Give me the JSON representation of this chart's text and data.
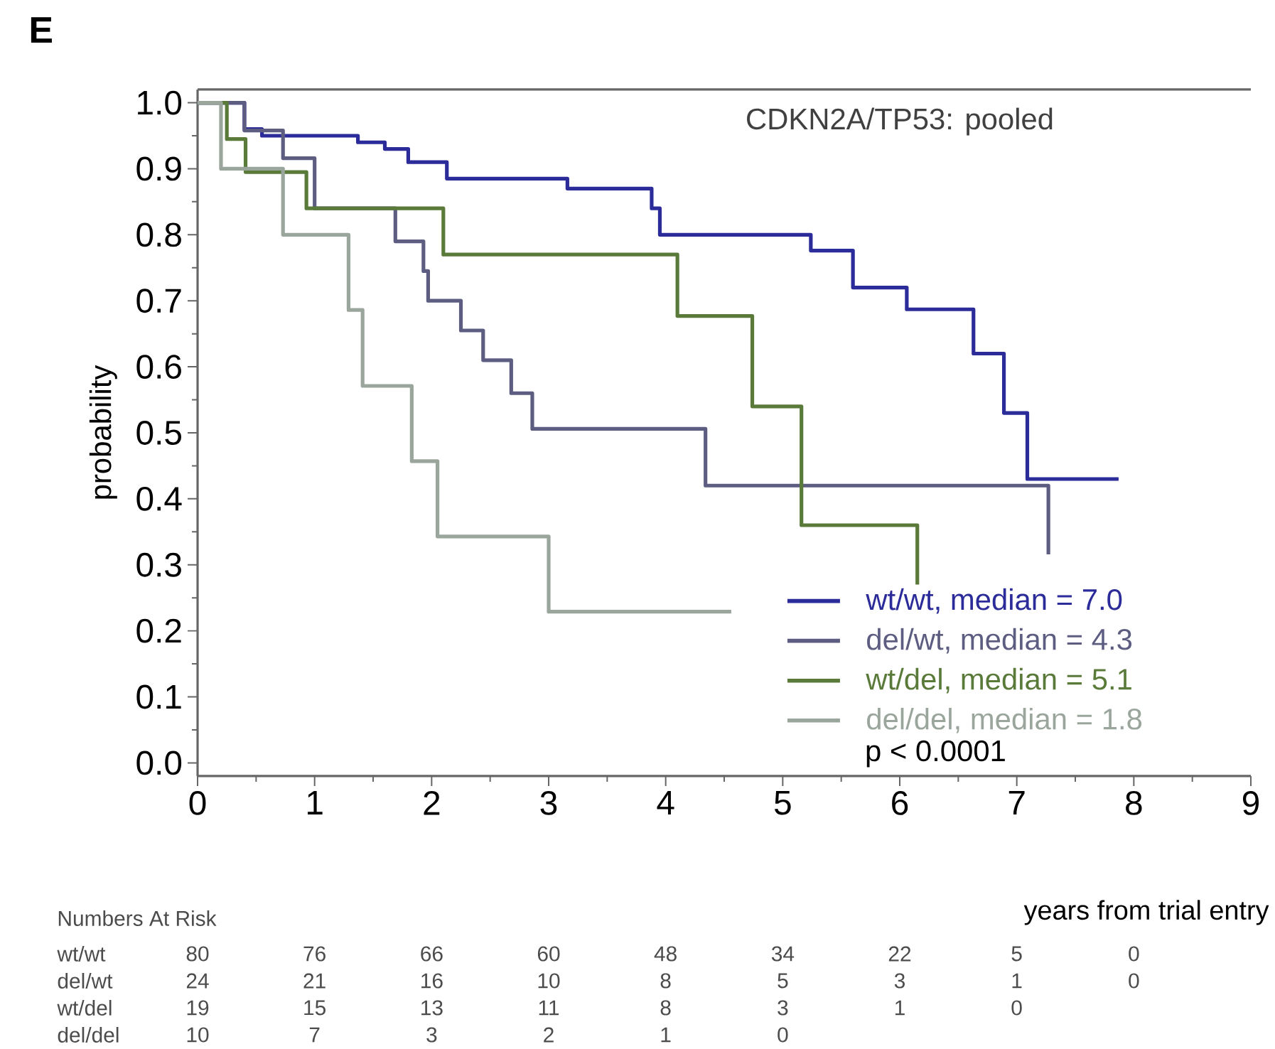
{
  "chart_data": {
    "type": "step",
    "title": "CDKN2A/TP53: pooled",
    "xlabel": "years from trial entry",
    "ylabel": "probability",
    "xlim": [
      0,
      9
    ],
    "ylim": [
      -0.02,
      1.02
    ],
    "xticks": [
      0,
      1,
      2,
      3,
      4,
      5,
      6,
      7,
      8,
      9
    ],
    "yticks": [
      {
        "value": 0,
        "label": "0.0"
      },
      {
        "value": 0.1,
        "label": "0.1"
      },
      {
        "value": 0.2,
        "label": "0.2"
      },
      {
        "value": 0.3,
        "label": "0.3"
      },
      {
        "value": 0.4,
        "label": "0.4"
      },
      {
        "value": 0.5,
        "label": "0.5"
      },
      {
        "value": 0.6,
        "label": "0.6"
      },
      {
        "value": 0.7,
        "label": "0.7"
      },
      {
        "value": 0.8,
        "label": "0.8"
      },
      {
        "value": 0.9,
        "label": "0.9"
      },
      {
        "value": 1,
        "label": "1.0"
      }
    ],
    "legend": "bottom right",
    "series": [
      {
        "name": "wt/wt, median = 7.0",
        "color": "#2b2b9a",
        "x": [
          0,
          0.4,
          0.55,
          1.37,
          1.6,
          1.8,
          2.13,
          3.16,
          3.88,
          3.95,
          5.24,
          5.6,
          6.06,
          6.63,
          6.89,
          7.09,
          7.87
        ],
        "values": [
          1,
          0.96,
          0.95,
          0.94,
          0.93,
          0.91,
          0.885,
          0.87,
          0.84,
          0.8,
          0.776,
          0.72,
          0.687,
          0.62,
          0.53,
          0.43,
          0.43
        ]
      },
      {
        "name": "del/wt, median = 4.3",
        "color": "#5d5d82",
        "x": [
          0,
          0.4,
          0.73,
          1.0,
          1.69,
          1.93,
          1.97,
          2.25,
          2.44,
          2.68,
          2.86,
          4.34,
          7.27
        ],
        "values": [
          1,
          0.958,
          0.916,
          0.84,
          0.79,
          0.745,
          0.7,
          0.655,
          0.61,
          0.56,
          0.506,
          0.42,
          0.316
        ]
      },
      {
        "name": "wt/del, median = 5.1",
        "color": "#5a7a3a",
        "x": [
          0,
          0.25,
          0.41,
          0.93,
          2.1,
          4.1,
          4.74,
          5.16,
          6.15
        ],
        "values": [
          1,
          0.945,
          0.895,
          0.84,
          0.77,
          0.677,
          0.54,
          0.36,
          0.27
        ]
      },
      {
        "name": "del/del, median = 1.8",
        "color": "#9aa59c",
        "x": [
          0,
          0.2,
          0.73,
          1.29,
          1.41,
          1.83,
          2.05,
          3.0,
          4.56
        ],
        "values": [
          1,
          0.9,
          0.8,
          0.686,
          0.571,
          0.457,
          0.343,
          0.229,
          0.229
        ]
      }
    ],
    "annotations": [
      "E",
      "p < 0.0001",
      "Numbers At Risk",
      "wt/wt",
      "80",
      "76",
      "66",
      "60",
      "48",
      "34",
      "22",
      "5",
      "0",
      "del/wt",
      "24",
      "21",
      "16",
      "10",
      "8",
      "5",
      "3",
      "1",
      "0",
      "wt/del",
      "19",
      "15",
      "13",
      "11",
      "8",
      "3",
      "1",
      "0",
      "del/del",
      "10",
      "7",
      "3",
      "2",
      "1",
      "0"
    ]
  }
}
